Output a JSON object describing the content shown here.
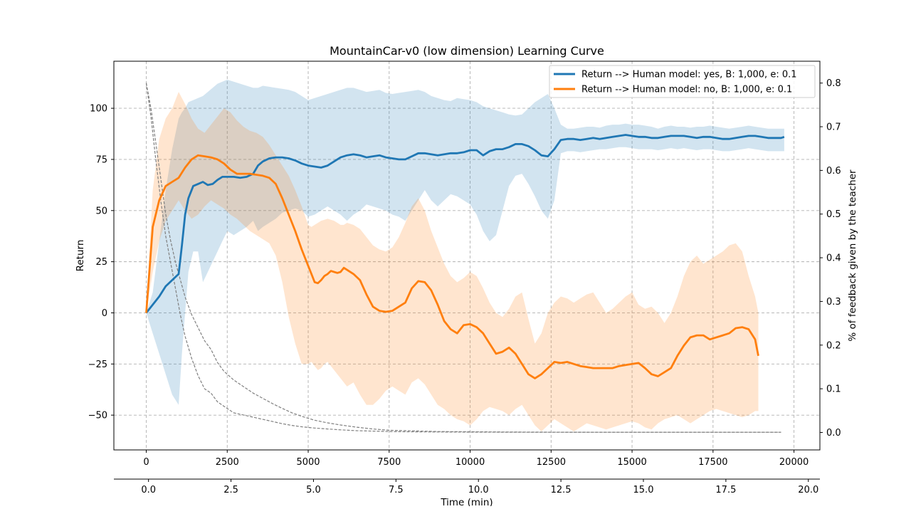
{
  "chart_data": {
    "type": "line",
    "title": "MountainCar-v0 (low dimension) Learning Curve",
    "ylabel": "Return",
    "y2label": "% of feedback given by the teacher",
    "x2label": "Time (min)",
    "xlabel": "",
    "xlim": [
      -1000,
      20800
    ],
    "ylim": [
      -67,
      123
    ],
    "y2lim": [
      -0.04,
      0.85
    ],
    "x2lim": [
      -1.05,
      20.35
    ],
    "xticks": [
      0,
      2500,
      5000,
      7500,
      10000,
      12500,
      15000,
      17500,
      20000
    ],
    "xtick_labels": [
      "0",
      "2500",
      "5000",
      "7500",
      "10000",
      "12500",
      "15000",
      "17500",
      "20000"
    ],
    "yticks": [
      -50,
      -25,
      0,
      25,
      50,
      75,
      100
    ],
    "ytick_labels": [
      "−50",
      "−25",
      "0",
      "25",
      "50",
      "75",
      "100"
    ],
    "y2ticks": [
      0.0,
      0.1,
      0.2,
      0.3,
      0.4,
      0.5,
      0.6,
      0.7,
      0.8
    ],
    "y2tick_labels": [
      "0.0",
      "0.1",
      "0.2",
      "0.3",
      "0.4",
      "0.5",
      "0.6",
      "0.7",
      "0.8"
    ],
    "x2ticks": [
      0,
      2.5,
      5,
      7.5,
      10,
      12.5,
      15,
      17.5,
      20
    ],
    "x2tick_labels": [
      "0.0",
      "2.5",
      "5.0",
      "7.5",
      "10.0",
      "12.5",
      "15.0",
      "17.5",
      "20.0"
    ],
    "grid": true,
    "legend_position": "top-right",
    "series": [
      {
        "name": "Return --> Human model: yes, B: 1,000, e: 0.1",
        "color": "#1f77b4",
        "band_color": "#1f77b4",
        "x": [
          0,
          200,
          400,
          600,
          800,
          1000,
          1100,
          1200,
          1300,
          1450,
          1600,
          1750,
          1900,
          2050,
          2200,
          2350,
          2500,
          2700,
          2900,
          3100,
          3300,
          3450,
          3600,
          3800,
          4000,
          4200,
          4400,
          4600,
          4800,
          5000,
          5200,
          5400,
          5600,
          5800,
          6000,
          6200,
          6400,
          6600,
          6800,
          7000,
          7200,
          7400,
          7600,
          7800,
          8000,
          8200,
          8400,
          8600,
          8800,
          9000,
          9200,
          9400,
          9600,
          9800,
          10000,
          10200,
          10400,
          10600,
          10800,
          11000,
          11200,
          11400,
          11600,
          11800,
          12000,
          12200,
          12400,
          12600,
          12800,
          13000,
          13200,
          13400,
          13600,
          13800,
          14000,
          14200,
          14400,
          14600,
          14800,
          15000,
          15200,
          15400,
          15600,
          15800,
          16000,
          16200,
          16400,
          16600,
          16800,
          17000,
          17200,
          17400,
          17600,
          17800,
          18000,
          18200,
          18400,
          18600,
          18800,
          19000,
          19200,
          19400,
          19600,
          19700
        ],
        "values": [
          0,
          4,
          8,
          13,
          16,
          19,
          33,
          48,
          56,
          62,
          63,
          64,
          62.5,
          63,
          65,
          66.5,
          66.5,
          66.5,
          66,
          66.5,
          68,
          72,
          74,
          75.5,
          76,
          76,
          75.5,
          74.5,
          73,
          72,
          71.5,
          71,
          72,
          74,
          76,
          77,
          77.5,
          77,
          76,
          76.5,
          77,
          76,
          75.5,
          75,
          75,
          76.5,
          78,
          78,
          77.5,
          77,
          77.5,
          78,
          78,
          78.5,
          79.5,
          79.5,
          77,
          79,
          80,
          80,
          81,
          82.5,
          82.5,
          81.5,
          79.5,
          77,
          76.5,
          80,
          84.5,
          85,
          85,
          84.5,
          85,
          85.5,
          85,
          85.5,
          86,
          86.5,
          87,
          86.5,
          86,
          86,
          85.5,
          85.5,
          86,
          86.5,
          86.5,
          86.5,
          86,
          85.5,
          86,
          86,
          85.5,
          85,
          85,
          85.5,
          86,
          86.5,
          86.5,
          86,
          85.5,
          85.5,
          85.5,
          86
        ],
        "upper": [
          0,
          10,
          35,
          60,
          80,
          95,
          98,
          100,
          103,
          104,
          105,
          106,
          108,
          110,
          112,
          113,
          114,
          113,
          112,
          111,
          110,
          110,
          111,
          110.5,
          110,
          109.5,
          109,
          108,
          106,
          104,
          105,
          106,
          107,
          108,
          109,
          110,
          110,
          109,
          108,
          108.5,
          109,
          107.5,
          107,
          107.5,
          108,
          108.5,
          109,
          108,
          106,
          105,
          104,
          103.5,
          105,
          104.5,
          104,
          103,
          101,
          100,
          99,
          98,
          97,
          96.5,
          97,
          100,
          103,
          105,
          107,
          100,
          92,
          90,
          90,
          90.5,
          91,
          91,
          90.5,
          91.5,
          92,
          92,
          92.5,
          92,
          92,
          91.5,
          91,
          90,
          91,
          91.5,
          91,
          91,
          90.5,
          91,
          91,
          91.5,
          91,
          90.5,
          90,
          90.5,
          91,
          91.5,
          91,
          90.5,
          90,
          90,
          90,
          90
        ],
        "lower": [
          0,
          -10,
          -20,
          -30,
          -40,
          -45,
          -20,
          0,
          20,
          30,
          30,
          15,
          20,
          25,
          30,
          35,
          40,
          38,
          40,
          42,
          45,
          40,
          42,
          44,
          46,
          49,
          50,
          51,
          50,
          47,
          48,
          50,
          52,
          50,
          48,
          45,
          48,
          50,
          53,
          52,
          51,
          50,
          48,
          47,
          45,
          50,
          55,
          60,
          55,
          52,
          55,
          58,
          57,
          55,
          53,
          48,
          40,
          35,
          38,
          50,
          62,
          67,
          68,
          63,
          57,
          50,
          46,
          55,
          78,
          79,
          79,
          78.5,
          79,
          79.5,
          80,
          80,
          80.5,
          81,
          81,
          80.5,
          80,
          80,
          80,
          79.5,
          80,
          80.5,
          80,
          80.5,
          80,
          79.5,
          80,
          80,
          79.5,
          79,
          79,
          79.5,
          80,
          80.5,
          80,
          79.5,
          79,
          79,
          79,
          79
        ]
      },
      {
        "name": "Return --> Human model: no, B: 1,000, e: 0.1",
        "color": "#ff7f0e",
        "band_color": "#ff7f0e",
        "x": [
          0,
          200,
          400,
          600,
          800,
          1000,
          1200,
          1400,
          1600,
          1800,
          2000,
          2200,
          2400,
          2600,
          2800,
          3000,
          3200,
          3400,
          3600,
          3800,
          4000,
          4200,
          4400,
          4600,
          4800,
          5000,
          5100,
          5200,
          5300,
          5400,
          5500,
          5600,
          5700,
          5800,
          5900,
          6000,
          6100,
          6200,
          6400,
          6600,
          6800,
          7000,
          7200,
          7400,
          7600,
          7800,
          8000,
          8200,
          8400,
          8600,
          8800,
          9000,
          9200,
          9400,
          9600,
          9800,
          10000,
          10200,
          10400,
          10600,
          10800,
          11000,
          11200,
          11400,
          11600,
          11800,
          12000,
          12200,
          12400,
          12600,
          12800,
          13000,
          13200,
          13400,
          13600,
          13800,
          14000,
          14200,
          14400,
          14600,
          14800,
          15000,
          15200,
          15400,
          15600,
          15800,
          16000,
          16200,
          16400,
          16600,
          16800,
          17000,
          17200,
          17400,
          17600,
          17800,
          18000,
          18200,
          18400,
          18600,
          18800,
          18900
        ],
        "values": [
          0,
          42,
          55,
          62,
          64,
          66,
          71,
          75,
          77,
          76.5,
          76,
          75,
          73,
          70,
          68,
          68,
          68,
          67.5,
          67,
          66,
          63,
          56,
          48,
          40,
          31,
          23,
          19,
          15,
          14.5,
          16,
          18,
          19,
          20.5,
          20,
          19.5,
          20,
          22,
          21,
          19,
          16,
          9,
          3,
          1,
          0.5,
          1,
          3,
          5,
          12,
          15.5,
          15,
          11,
          4,
          -4,
          -8,
          -10,
          -6,
          -5.5,
          -7,
          -10,
          -15,
          -20,
          -19,
          -17,
          -20,
          -25,
          -30,
          -32,
          -30,
          -27,
          -24,
          -24.5,
          -24,
          -25,
          -26,
          -26.5,
          -27,
          -27,
          -27,
          -27,
          -26,
          -25.5,
          -25,
          -24.5,
          -27,
          -30,
          -31,
          -29,
          -27,
          -21,
          -16,
          -12,
          -11,
          -11,
          -13,
          -12,
          -11,
          -10,
          -7.5,
          -7,
          -8,
          -13,
          -21
        ],
        "upper": [
          0,
          60,
          85,
          95,
          100,
          108,
          102,
          95,
          90,
          88,
          92,
          96,
          100,
          98,
          94,
          91,
          89,
          88,
          86,
          82,
          77,
          72,
          67,
          60,
          52,
          43,
          42,
          43,
          44,
          45,
          45.5,
          46,
          45.5,
          45,
          44,
          43,
          43,
          44,
          43,
          41,
          37,
          33,
          31,
          30,
          32,
          37,
          44,
          52,
          56,
          50,
          40,
          32,
          24,
          18,
          15,
          17,
          20,
          18,
          12,
          5,
          0,
          -2,
          2,
          8,
          10,
          -3,
          -15,
          -10,
          0,
          5,
          8,
          7,
          5,
          7,
          9,
          10,
          5,
          0,
          2,
          5,
          8,
          10,
          4,
          2,
          3,
          0,
          -5,
          0,
          8,
          18,
          25,
          28,
          24,
          26,
          28,
          30,
          33,
          34,
          30,
          18,
          8,
          0
        ],
        "lower": [
          0,
          20,
          35,
          45,
          50,
          55,
          50,
          46,
          48,
          52,
          55,
          53,
          51,
          48,
          46,
          43,
          40,
          38,
          36,
          34,
          28,
          15,
          -2,
          -15,
          -25,
          -25,
          -24,
          -26,
          -28,
          -27,
          -25,
          -24,
          -26,
          -28,
          -30,
          -32,
          -34,
          -36,
          -34,
          -40,
          -45,
          -45,
          -42,
          -38,
          -36,
          -38,
          -40,
          -34,
          -32,
          -35,
          -40,
          -45,
          -47,
          -50,
          -52,
          -53,
          -55,
          -52,
          -48,
          -46,
          -47,
          -48,
          -50,
          -47,
          -45,
          -50,
          -55,
          -58,
          -55,
          -52,
          -54,
          -56,
          -58,
          -56,
          -54,
          -55,
          -56,
          -57,
          -56,
          -55,
          -54,
          -53,
          -54,
          -56,
          -57,
          -54,
          -52,
          -51,
          -50,
          -52,
          -54,
          -52,
          -50,
          -48,
          -47,
          -48,
          -49,
          -50,
          -51,
          -50,
          -48,
          -48
        ]
      }
    ],
    "feedback_series": [
      {
        "color": "#808080",
        "axis": "y2",
        "x": [
          0,
          150,
          300,
          450,
          600,
          750,
          900,
          1050,
          1200,
          1400,
          1600,
          1800,
          2000,
          2200,
          2400,
          2700,
          3000,
          3300,
          3600,
          3900,
          4200,
          4500,
          4800,
          5200,
          5600,
          6000,
          6500,
          7000,
          7500,
          8000,
          9000,
          10000,
          11000,
          12000,
          13000,
          14000,
          15000,
          16000,
          17000,
          18000,
          19000,
          19600
        ],
        "values": [
          0.8,
          0.72,
          0.62,
          0.53,
          0.45,
          0.39,
          0.33,
          0.27,
          0.22,
          0.17,
          0.13,
          0.1,
          0.09,
          0.07,
          0.06,
          0.045,
          0.04,
          0.035,
          0.03,
          0.025,
          0.02,
          0.016,
          0.013,
          0.01,
          0.008,
          0.006,
          0.004,
          0.003,
          0.002,
          0.0015,
          0.001,
          0.0008,
          0.0006,
          0.0005,
          0.0004,
          0.0004,
          0.0004,
          0.0004,
          0.0004,
          0.0004,
          0.0004,
          0.0004
        ]
      },
      {
        "color": "#808080",
        "axis": "y2",
        "x": [
          0,
          150,
          300,
          450,
          600,
          750,
          900,
          1050,
          1200,
          1400,
          1600,
          1800,
          2000,
          2200,
          2400,
          2700,
          3000,
          3300,
          3600,
          3900,
          4200,
          4500,
          4800,
          5200,
          5600,
          6000,
          6500,
          7000,
          7500,
          8000,
          9000,
          10000,
          11000,
          12000,
          13000,
          14000,
          15000,
          16000,
          17000,
          18000,
          19000,
          19600
        ],
        "values": [
          0.8,
          0.74,
          0.66,
          0.58,
          0.5,
          0.44,
          0.39,
          0.35,
          0.31,
          0.27,
          0.24,
          0.21,
          0.19,
          0.16,
          0.14,
          0.12,
          0.105,
          0.09,
          0.078,
          0.066,
          0.055,
          0.045,
          0.037,
          0.028,
          0.022,
          0.017,
          0.012,
          0.008,
          0.005,
          0.004,
          0.002,
          0.0015,
          0.001,
          0.0008,
          0.0006,
          0.0005,
          0.0005,
          0.0004,
          0.0004,
          0.0004,
          0.0004,
          0.0004
        ]
      }
    ]
  }
}
